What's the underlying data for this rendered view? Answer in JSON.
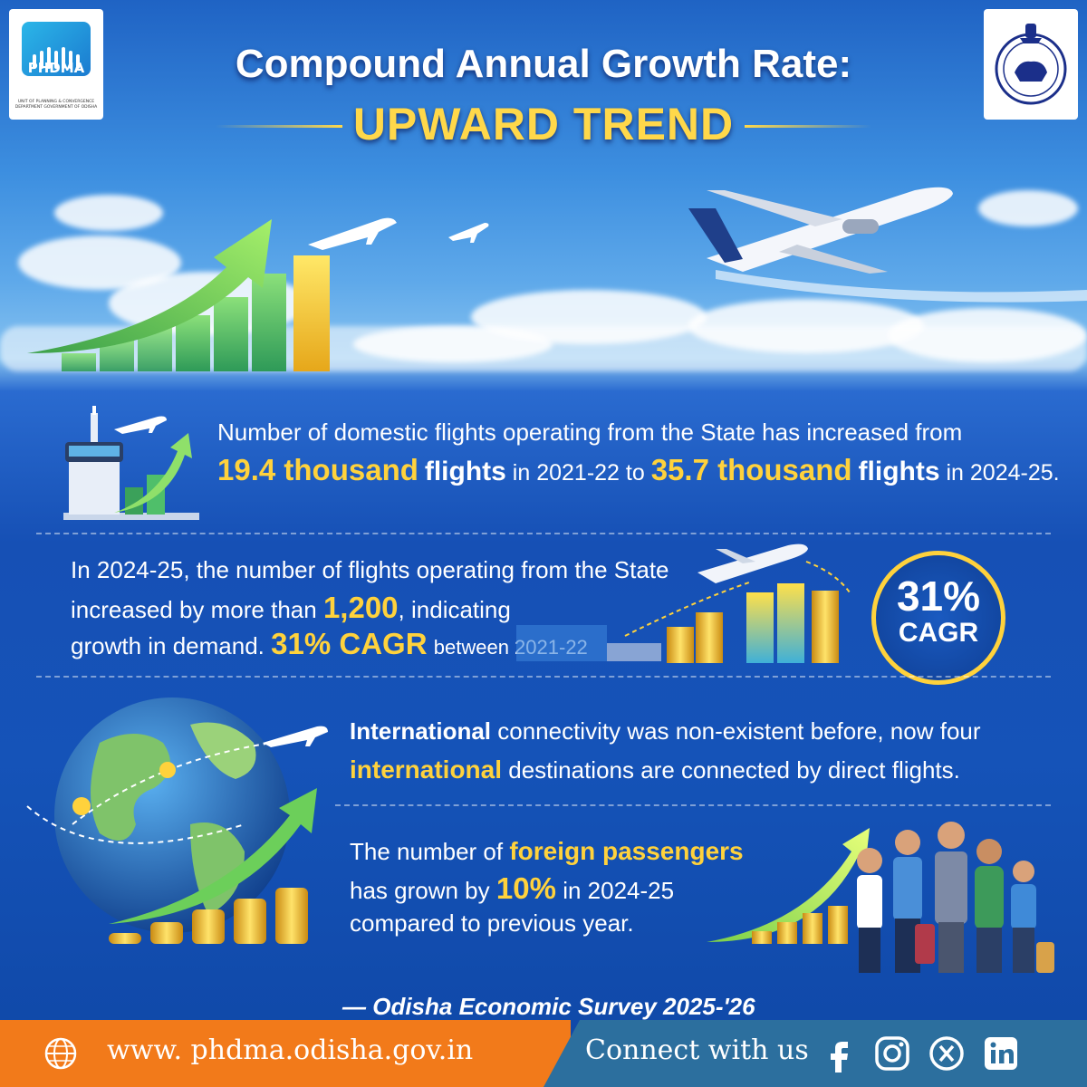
{
  "header": {
    "title": "Compound Annual Growth Rate:",
    "subtitle": "UPWARD TREND",
    "left_logo": {
      "name": "PHDMA",
      "department": "UNIT OF PLANNING & CONVERGENCE DEPARTMENT GOVERNMENT OF ODISHA"
    },
    "right_logo": {
      "name": "Government of Odisha seal"
    }
  },
  "section1": {
    "line1": "Number of domestic flights operating from the State has increased from",
    "value1": "19.4 thousand",
    "unit1": "flights",
    "mid": "in 2021-22 to",
    "value2": "35.7 thousand",
    "unit2": "flights",
    "end": "in 2024-25."
  },
  "section2": {
    "line1": "In 2024-25, the number of flights operating from the State",
    "line2_pre": "increased by more than",
    "line2_value": "1,200",
    "line2_post": ", indicating",
    "line3_pre": "growth in demand.",
    "line3_value": "31% CAGR",
    "line3_post": "between 2021-22",
    "badge_value": "31%",
    "badge_label": "CAGR"
  },
  "section3": {
    "line1_bold": "International",
    "line1_rest": " connectivity was non-existent before, now four",
    "line2_bold": "international",
    "line2_rest": " destinations are connected by direct flights."
  },
  "section4": {
    "line1_pre": "The number of",
    "line1_bold": "foreign passengers",
    "line2_pre": "has grown by",
    "line2_value": "10%",
    "line2_post": "in 2024-25",
    "line3": "compared to previous year."
  },
  "source": "— Odisha Economic Survey 2025-'26",
  "footer": {
    "website": "www. phdma.odisha.gov.in",
    "connect": "Connect with us",
    "social_icons": [
      "facebook-icon",
      "instagram-icon",
      "x-icon",
      "linkedin-icon"
    ]
  },
  "colors": {
    "highlight": "#ffd23c",
    "footer_left": "#f27a1a",
    "footer_right": "#2c6f9e"
  }
}
